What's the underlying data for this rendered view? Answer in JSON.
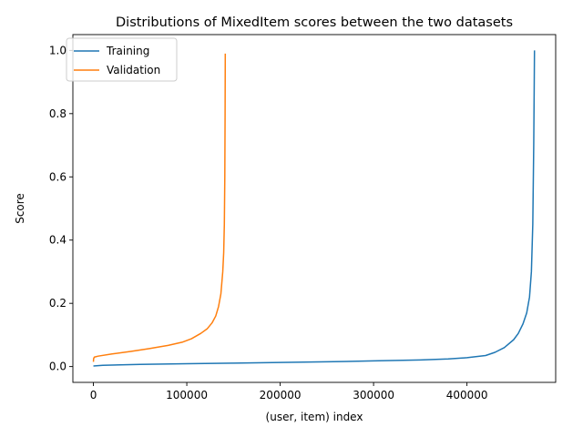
{
  "chart_data": {
    "type": "line",
    "title": "Distributions of MixedItem scores between the two datasets",
    "xlabel": "(user, item) index",
    "ylabel": "Score",
    "xlim": [
      -22000,
      495000
    ],
    "ylim": [
      -0.05,
      1.05
    ],
    "x_ticks": [
      0,
      100000,
      200000,
      300000,
      400000
    ],
    "x_tick_labels": [
      "0",
      "100000",
      "200000",
      "300000",
      "400000"
    ],
    "y_ticks": [
      0.0,
      0.2,
      0.4,
      0.6,
      0.8,
      1.0
    ],
    "y_tick_labels": [
      "0.0",
      "0.2",
      "0.4",
      "0.6",
      "0.8",
      "1.0"
    ],
    "grid": false,
    "legend_position": "top-left",
    "series": [
      {
        "name": "Training",
        "color": "#1f77b4",
        "x": [
          0,
          10000,
          50000,
          100000,
          150000,
          200000,
          250000,
          300000,
          350000,
          380000,
          400000,
          420000,
          430000,
          440000,
          450000,
          455000,
          460000,
          464000,
          467000,
          469000,
          470500,
          471500,
          472000,
          472300
        ],
        "y": [
          0.002,
          0.004,
          0.007,
          0.009,
          0.011,
          0.013,
          0.015,
          0.018,
          0.021,
          0.024,
          0.028,
          0.035,
          0.045,
          0.06,
          0.085,
          0.105,
          0.135,
          0.17,
          0.22,
          0.3,
          0.45,
          0.7,
          0.88,
          1.0
        ]
      },
      {
        "name": "Validation",
        "color": "#ff7f0e",
        "x": [
          0,
          200,
          1000,
          5000,
          20000,
          40000,
          60000,
          80000,
          95000,
          105000,
          115000,
          122000,
          127000,
          131000,
          134000,
          136500,
          138500,
          139500,
          140200,
          140700,
          141000,
          141200
        ],
        "y": [
          0.015,
          0.025,
          0.03,
          0.033,
          0.04,
          0.048,
          0.057,
          0.067,
          0.077,
          0.088,
          0.105,
          0.12,
          0.138,
          0.16,
          0.19,
          0.23,
          0.3,
          0.36,
          0.45,
          0.6,
          0.8,
          0.99
        ]
      }
    ]
  }
}
